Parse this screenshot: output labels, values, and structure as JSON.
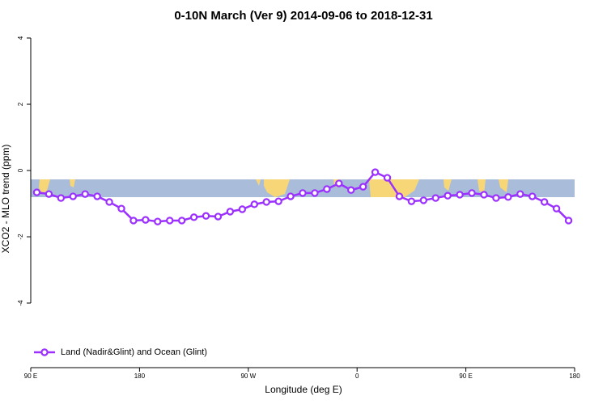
{
  "chart_data": {
    "type": "line",
    "title": "0-10N March (Ver 9)   2014-09-06 to 2018-12-31",
    "x_label": "Longitude (deg E)",
    "y_label": "XCO2 - MLO trend (ppm)",
    "x": [
      95,
      105,
      115,
      125,
      135,
      145,
      155,
      165,
      175,
      185,
      195,
      205,
      215,
      225,
      235,
      245,
      255,
      265,
      275,
      285,
      295,
      305,
      315,
      325,
      335,
      345,
      355,
      365,
      375,
      385,
      395,
      405,
      415,
      425,
      435,
      445,
      455,
      465,
      475,
      485,
      495,
      505,
      515,
      525,
      535
    ],
    "series": [
      {
        "name": "Land (Nadir&Glint) and Ocean (Glint)",
        "color": "#9b30ff",
        "values": [
          -0.66,
          -0.71,
          -0.83,
          -0.78,
          -0.71,
          -0.78,
          -0.95,
          -1.15,
          -1.51,
          -1.49,
          -1.54,
          -1.51,
          -1.51,
          -1.41,
          -1.37,
          -1.39,
          -1.24,
          -1.17,
          -1.02,
          -0.95,
          -0.93,
          -0.78,
          -0.68,
          -0.68,
          -0.56,
          -0.39,
          -0.59,
          -0.49,
          -0.05,
          -0.22,
          -0.78,
          -0.93,
          -0.9,
          -0.83,
          -0.76,
          -0.73,
          -0.68,
          -0.73,
          -0.83,
          -0.8,
          -0.71,
          -0.78,
          -0.95,
          -1.15,
          -1.51
        ]
      }
    ],
    "xlim": [
      90,
      540
    ],
    "xticks": [
      {
        "value": 90,
        "label": "90 E"
      },
      {
        "value": 180,
        "label": "180"
      },
      {
        "value": 270,
        "label": "90 W"
      },
      {
        "value": 360,
        "label": "0"
      },
      {
        "value": 450,
        "label": "90 E"
      },
      {
        "value": 540,
        "label": "180"
      }
    ],
    "ylim": [
      -5.95,
      4.22
    ],
    "yticks": [
      -4,
      -2,
      0,
      2,
      4
    ],
    "legend": "bottom-left"
  }
}
